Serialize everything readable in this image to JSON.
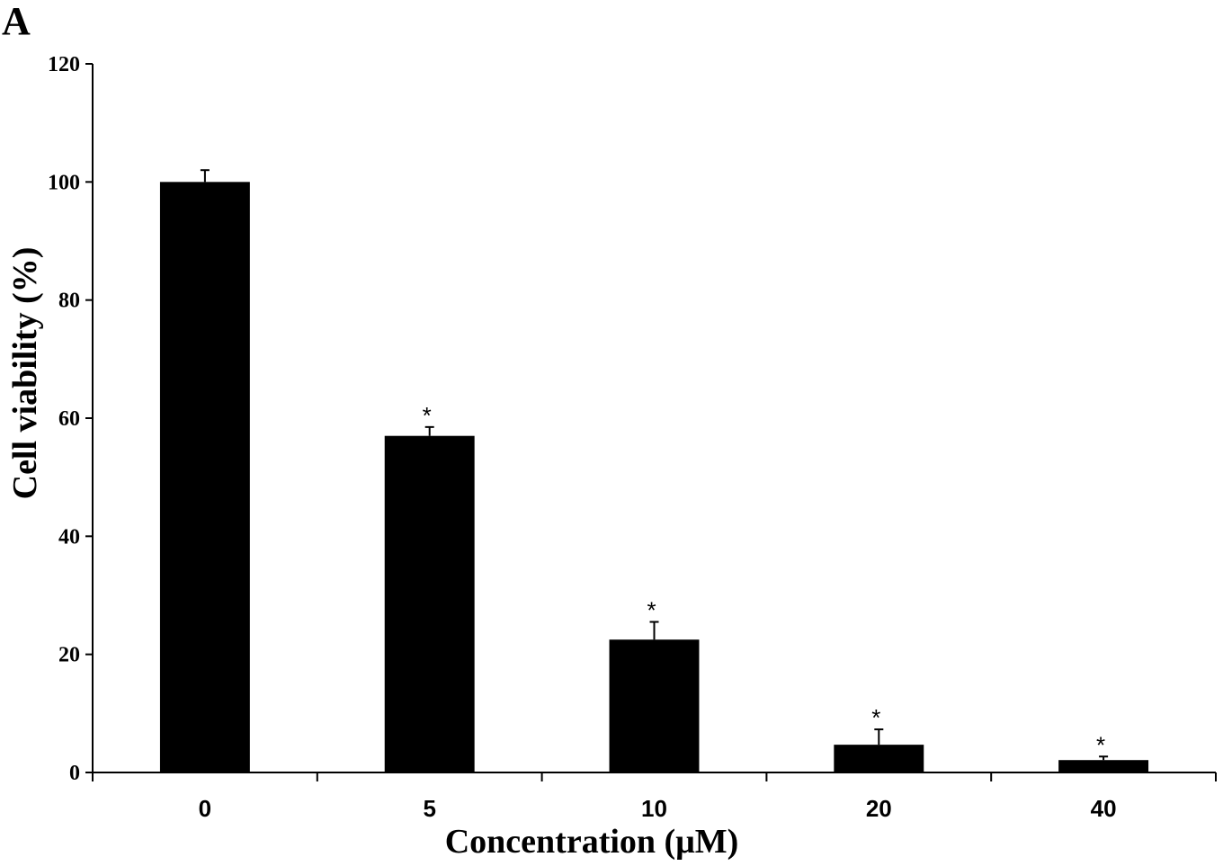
{
  "panel_label": "A",
  "chart_data": {
    "type": "bar",
    "categories": [
      "0",
      "5",
      "10",
      "20",
      "40"
    ],
    "values": [
      100,
      57,
      22.5,
      4.7,
      2.1
    ],
    "errors": [
      2,
      1.5,
      3,
      2.6,
      0.6
    ],
    "significance": [
      "",
      "*",
      "*",
      "*",
      "*"
    ],
    "xlabel": "Concentration (μM)",
    "ylabel": "Cell viability (%)",
    "ylim": [
      0,
      120
    ],
    "yticks": [
      "0",
      "20",
      "40",
      "60",
      "80",
      "100",
      "120"
    ],
    "bar_color": "#000000",
    "grid": false,
    "legend": "none"
  }
}
